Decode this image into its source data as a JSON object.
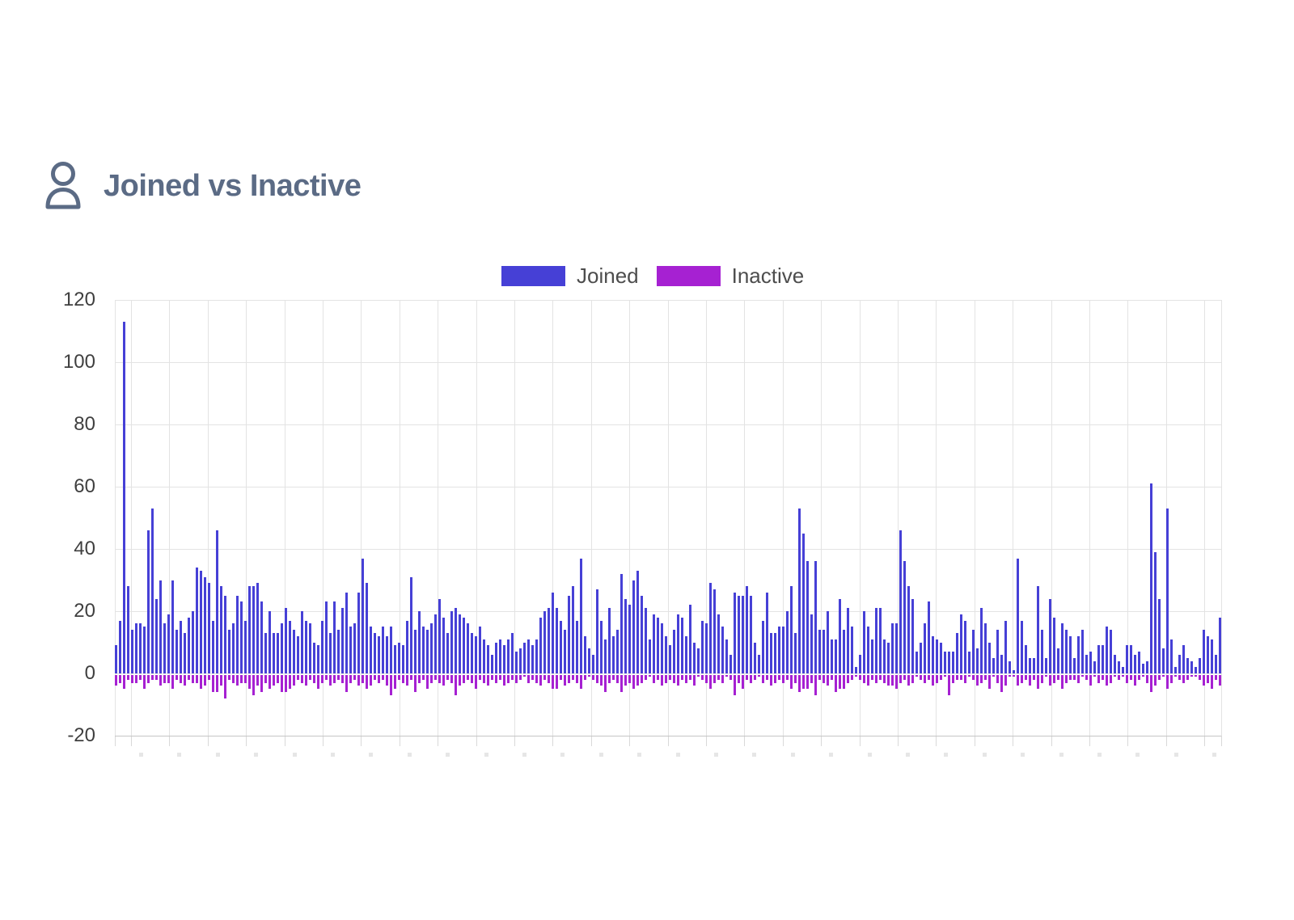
{
  "header": {
    "title": "Joined vs Inactive",
    "icon": "person-icon"
  },
  "legend": {
    "items": [
      {
        "label": "Joined",
        "color": "#4640d6"
      },
      {
        "label": "Inactive",
        "color": "#a621d2"
      }
    ]
  },
  "colors": {
    "background": "#ffffff",
    "title": "#5b6b85",
    "bar_joined": "#4640d6",
    "bar_inactive": "#a621d2",
    "gridline": "#e3e3e3",
    "axis_line": "#c6c6c6",
    "tick_stub": "#d9d9d9",
    "x_label_stub": "#e6e6e6",
    "axis_label": "#3f3f3f"
  },
  "chart_data": {
    "type": "bar",
    "title": "Joined vs Inactive",
    "legend_position": "top-center",
    "grid": true,
    "ylim": [
      -20,
      120
    ],
    "y_ticks": [
      120,
      100,
      80,
      60,
      40,
      20,
      0,
      -20
    ],
    "x_tick_labels_visible": false,
    "n_bars": 274,
    "series": [
      {
        "name": "Joined",
        "color": "#4640d6",
        "values": [
          9,
          17,
          113,
          28,
          14,
          16,
          16,
          15,
          46,
          53,
          24,
          30,
          16,
          19,
          30,
          14,
          17,
          13,
          18,
          20,
          34,
          33,
          31,
          29,
          17,
          46,
          28,
          25,
          14,
          16,
          25,
          23,
          17,
          28,
          28,
          29,
          23,
          13,
          20,
          13,
          13,
          16,
          21,
          17,
          14,
          12,
          20,
          17,
          16,
          10,
          9,
          17,
          23,
          13,
          23,
          14,
          21,
          26,
          15,
          16,
          26,
          37,
          29,
          15,
          13,
          12,
          15,
          12,
          15,
          9,
          10,
          9,
          17,
          31,
          14,
          20,
          15,
          14,
          16,
          19,
          24,
          18,
          13,
          20,
          21,
          19,
          18,
          16,
          13,
          12,
          15,
          11,
          9,
          6,
          10,
          11,
          9,
          11,
          13,
          7,
          8,
          10,
          11,
          9,
          11,
          18,
          20,
          21,
          26,
          21,
          17,
          14,
          25,
          28,
          17,
          37,
          12,
          8,
          6,
          27,
          17,
          11,
          21,
          12,
          14,
          32,
          24,
          22,
          30,
          33,
          25,
          21,
          11,
          19,
          18,
          16,
          12,
          9,
          14,
          19,
          18,
          12,
          22,
          10,
          8,
          17,
          16,
          29,
          27,
          19,
          15,
          11,
          6,
          26,
          25,
          25,
          28,
          25,
          10,
          6,
          17,
          26,
          13,
          13,
          15,
          15,
          20,
          28,
          13,
          53,
          45,
          36,
          19,
          36,
          14,
          14,
          20,
          11,
          11,
          24,
          14,
          21,
          15,
          2,
          6,
          20,
          15,
          11,
          21,
          21,
          11,
          10,
          16,
          16,
          46,
          36,
          28,
          24,
          7,
          10,
          16,
          23,
          12,
          11,
          10,
          7,
          7,
          7,
          13,
          19,
          17,
          7,
          14,
          8,
          21,
          16,
          10,
          5,
          14,
          6,
          17,
          4,
          1,
          37,
          17,
          9,
          5,
          5,
          28,
          14,
          5,
          24,
          18,
          8,
          16,
          14,
          12,
          5,
          12,
          14,
          6,
          7,
          4,
          9,
          9,
          15,
          14,
          6,
          4,
          2,
          9,
          9,
          6,
          7,
          3,
          4,
          61,
          39,
          24,
          8,
          53,
          11,
          2,
          6,
          9,
          5,
          4,
          2,
          5,
          14,
          12,
          11,
          6,
          18
        ]
      },
      {
        "name": "Inactive",
        "color": "#a621d2",
        "values": [
          -4,
          -3,
          -5,
          -2,
          -3,
          -3,
          -2,
          -5,
          -3,
          -2,
          -2,
          -4,
          -3,
          -3,
          -5,
          -2,
          -3,
          -4,
          -2,
          -3,
          -3,
          -5,
          -4,
          -2,
          -6,
          -6,
          -4,
          -8,
          -2,
          -3,
          -4,
          -3,
          -3,
          -5,
          -7,
          -4,
          -6,
          -3,
          -5,
          -4,
          -3,
          -6,
          -6,
          -5,
          -4,
          -2,
          -3,
          -4,
          -2,
          -3,
          -5,
          -3,
          -2,
          -4,
          -3,
          -2,
          -3,
          -6,
          -3,
          -2,
          -4,
          -3,
          -5,
          -4,
          -2,
          -3,
          -2,
          -4,
          -7,
          -5,
          -2,
          -3,
          -4,
          -2,
          -6,
          -3,
          -2,
          -5,
          -3,
          -2,
          -3,
          -4,
          -2,
          -3,
          -7,
          -4,
          -3,
          -2,
          -3,
          -5,
          -2,
          -3,
          -4,
          -2,
          -3,
          -2,
          -4,
          -3,
          -2,
          -3,
          -2,
          -1,
          -3,
          -2,
          -3,
          -4,
          -2,
          -3,
          -5,
          -5,
          -2,
          -4,
          -3,
          -2,
          -3,
          -5,
          -2,
          -1,
          -2,
          -3,
          -4,
          -6,
          -3,
          -2,
          -3,
          -6,
          -4,
          -3,
          -5,
          -4,
          -3,
          -2,
          -1,
          -3,
          -2,
          -4,
          -3,
          -2,
          -3,
          -4,
          -2,
          -3,
          -2,
          -4,
          -1,
          -2,
          -3,
          -5,
          -3,
          -2,
          -3,
          -1,
          -2,
          -7,
          -3,
          -5,
          -2,
          -3,
          -2,
          -1,
          -3,
          -2,
          -4,
          -3,
          -2,
          -3,
          -2,
          -5,
          -3,
          -6,
          -5,
          -5,
          -3,
          -7,
          -2,
          -3,
          -4,
          -2,
          -6,
          -5,
          -5,
          -3,
          -2,
          -1,
          -2,
          -3,
          -4,
          -2,
          -3,
          -2,
          -3,
          -4,
          -4,
          -5,
          -3,
          -2,
          -4,
          -3,
          -1,
          -2,
          -3,
          -2,
          -4,
          -3,
          -2,
          -1,
          -7,
          -3,
          -2,
          -2,
          -3,
          -1,
          -2,
          -4,
          -3,
          -2,
          -5,
          -1,
          -3,
          -6,
          -4,
          -1,
          -1,
          -4,
          -3,
          -2,
          -4,
          -2,
          -5,
          -3,
          -1,
          -4,
          -3,
          -2,
          -5,
          -3,
          -2,
          -2,
          -3,
          -1,
          -2,
          -4,
          -1,
          -3,
          -2,
          -4,
          -3,
          -1,
          -2,
          -1,
          -3,
          -2,
          -4,
          -2,
          -1,
          -3,
          -6,
          -4,
          -2,
          -1,
          -5,
          -3,
          -1,
          -2,
          -3,
          -2,
          -1,
          -1,
          -2,
          -4,
          -3,
          -5,
          -2,
          -4
        ]
      }
    ]
  }
}
